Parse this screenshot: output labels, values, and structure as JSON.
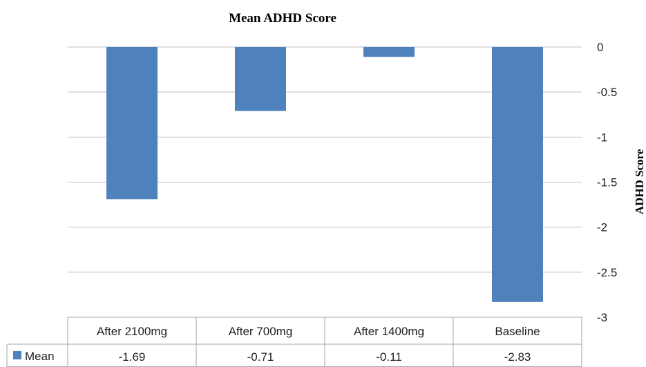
{
  "chart_data": {
    "type": "bar",
    "title": "Mean ADHD Score",
    "ylabel": "ADHD Score",
    "xlabel": "",
    "categories": [
      "After 2100mg",
      "After 700mg",
      "After 1400mg",
      "Baseline"
    ],
    "series": [
      {
        "name": "Mean",
        "values": [
          -1.69,
          -0.71,
          -0.11,
          -2.83
        ],
        "labels": [
          "-1.69",
          "-0.71",
          "-0.11",
          "-2.83"
        ]
      }
    ],
    "ylim": [
      -3,
      0
    ],
    "yticks": [
      "0",
      "-0.5",
      "-1",
      "-1.5",
      "-2",
      "-2.5",
      "-3"
    ],
    "y_axis_side": "right",
    "grid": true,
    "legend": "data-table-row",
    "bar_color": "#4f81bd"
  }
}
